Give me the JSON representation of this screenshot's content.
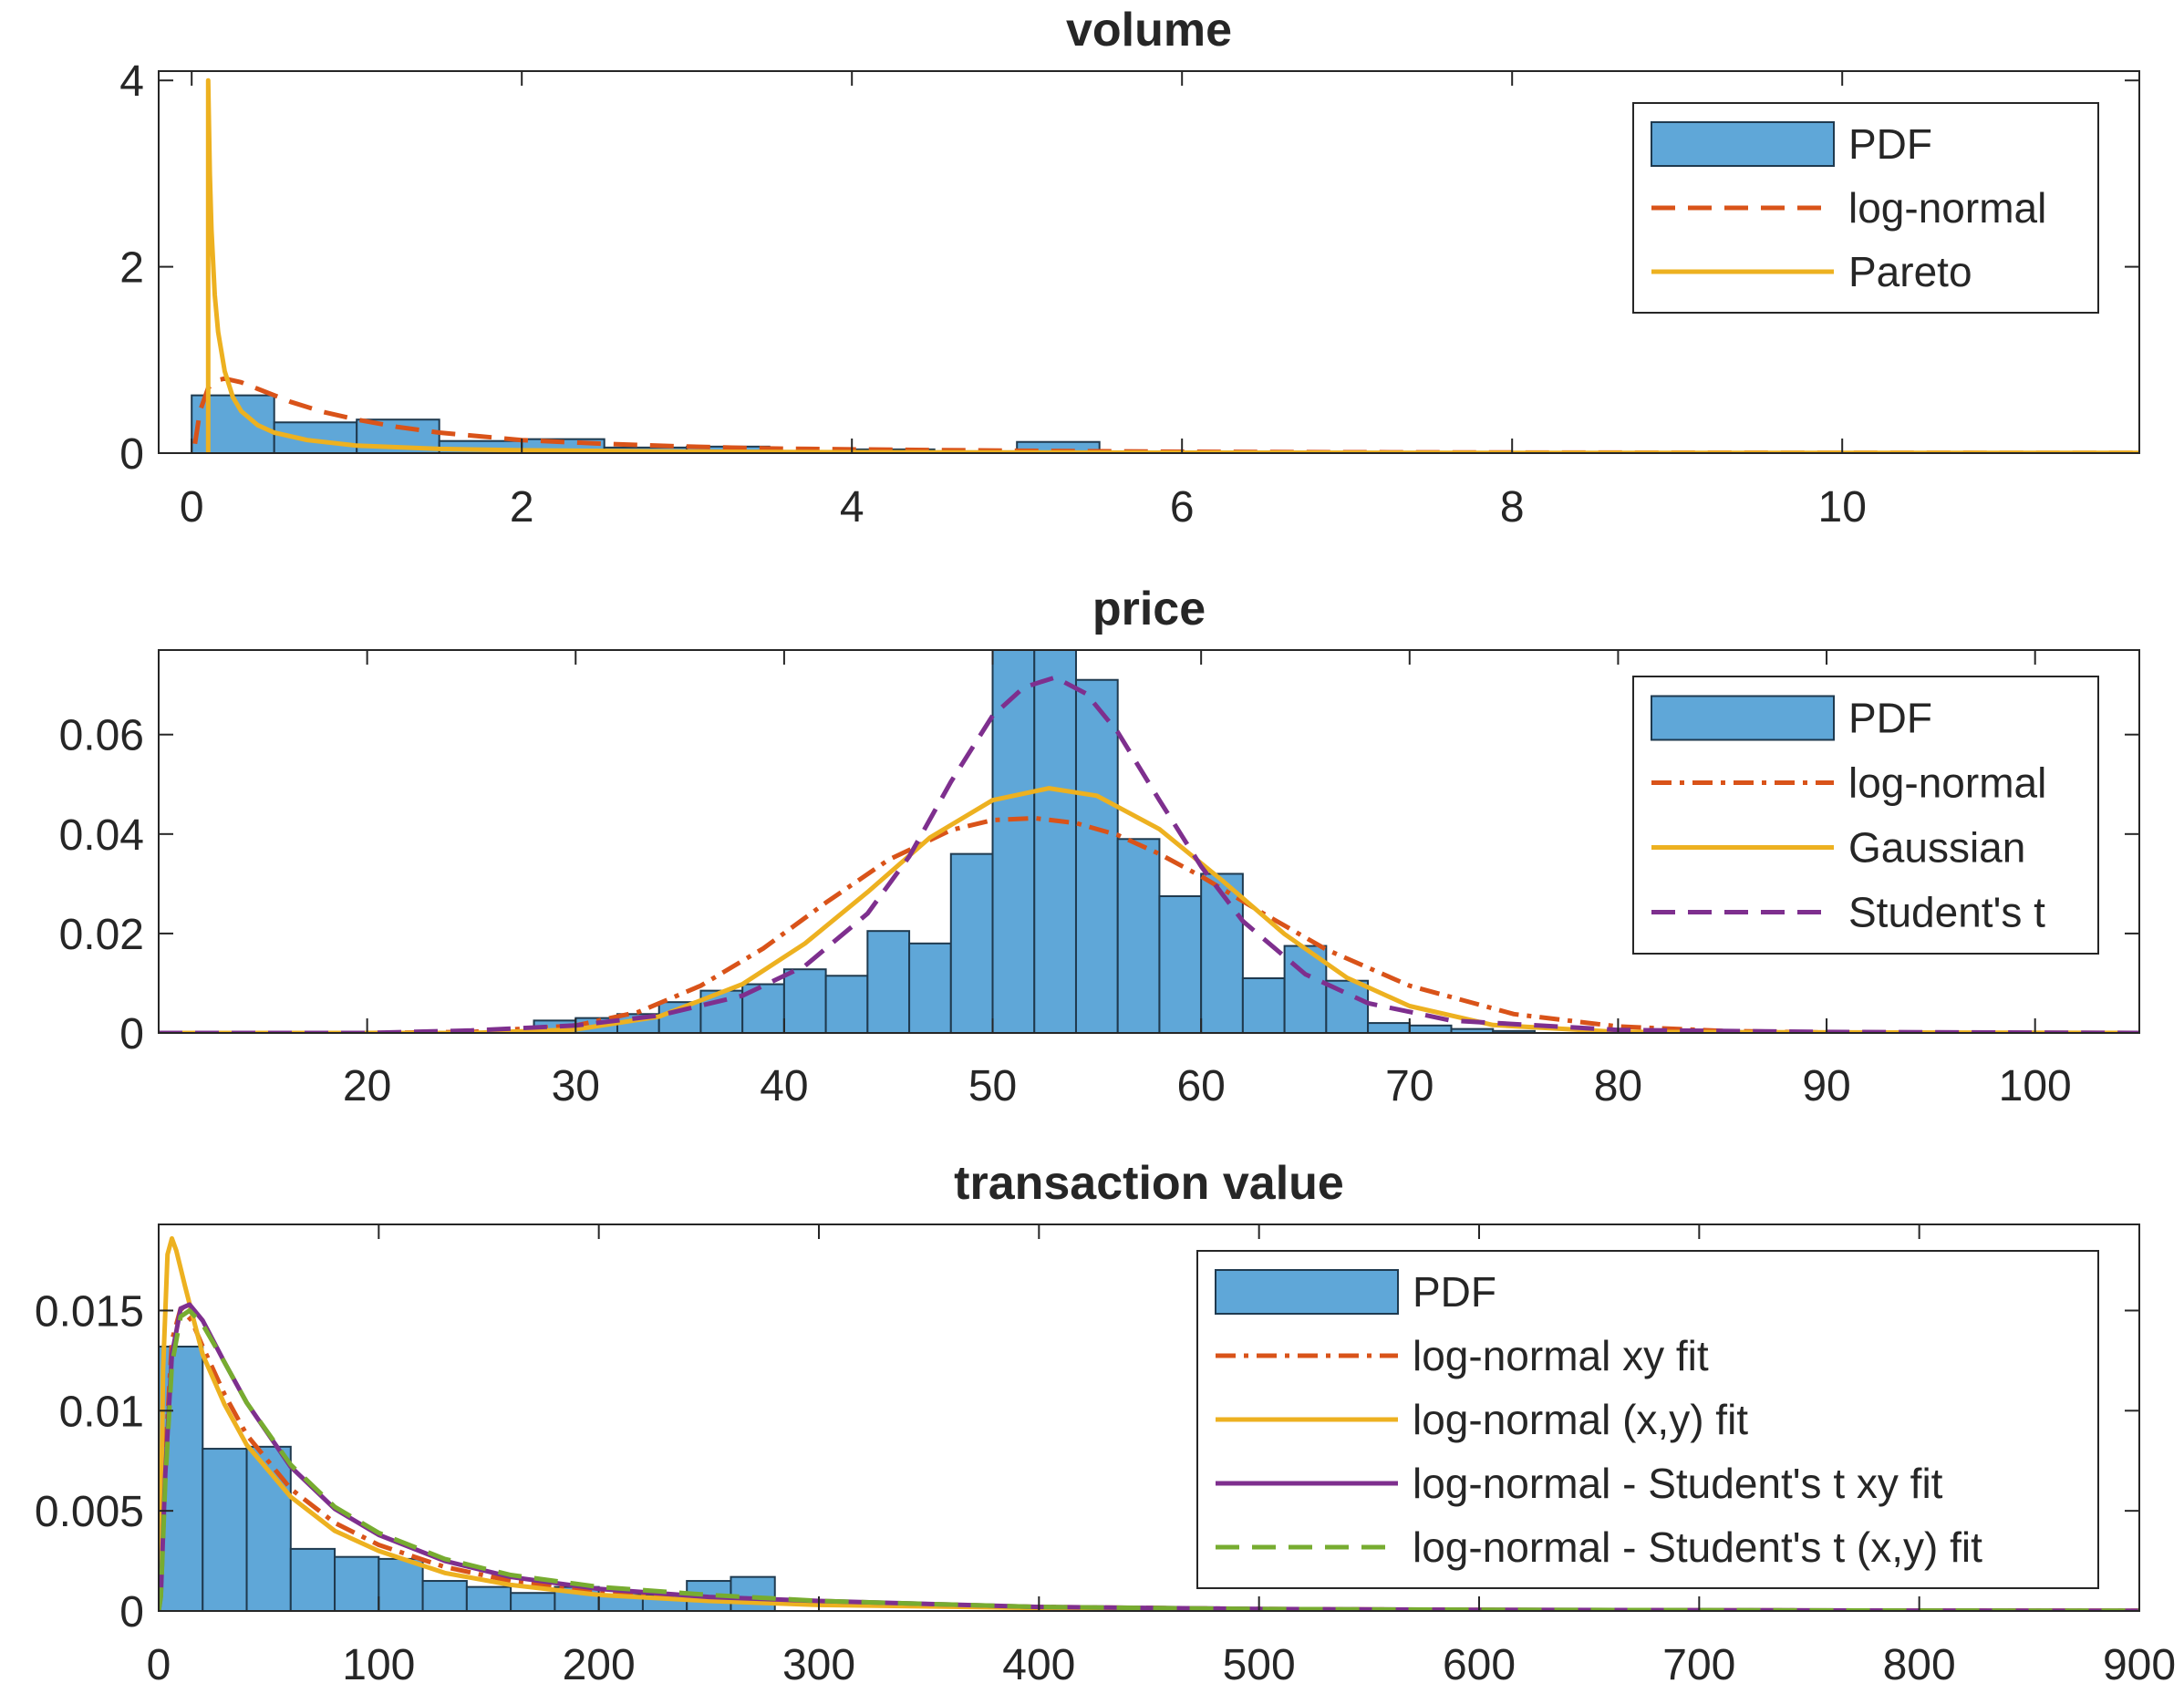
{
  "chart_data": [
    {
      "type": "bar",
      "title": "volume",
      "xlim": [
        -0.2,
        11.8
      ],
      "ylim": [
        0,
        4.1
      ],
      "xticks": [
        0,
        2,
        4,
        6,
        8,
        10
      ],
      "yticks": [
        0,
        2,
        4
      ],
      "xticklabels": [
        "0",
        "2",
        "4",
        "6",
        "8",
        "10"
      ],
      "yticklabels": [
        "0",
        "2",
        "4"
      ],
      "grid": false,
      "legend_position": "top-right",
      "histogram": {
        "name": "PDF",
        "bin_edges": [
          0,
          0.5,
          1,
          1.5,
          2,
          2.5,
          3,
          3.5,
          4,
          4.5,
          5,
          5.5
        ],
        "values": [
          0.62,
          0.33,
          0.36,
          0.13,
          0.15,
          0.06,
          0.07,
          0.02,
          0.04,
          0.01,
          0.12
        ]
      },
      "series": [
        {
          "name": "log-normal",
          "style": "dashed",
          "color": "#D95319",
          "x": [
            0.02,
            0.05,
            0.1,
            0.15,
            0.2,
            0.3,
            0.4,
            0.5,
            0.6,
            0.8,
            1.0,
            1.25,
            1.5,
            1.75,
            2.0,
            2.5,
            3.0,
            3.5,
            4.0,
            5.0,
            6.0,
            7.0,
            8.0,
            9.0,
            10.0,
            11.0,
            11.8
          ],
          "y": [
            0.1,
            0.45,
            0.7,
            0.78,
            0.8,
            0.76,
            0.69,
            0.62,
            0.55,
            0.44,
            0.36,
            0.28,
            0.22,
            0.18,
            0.14,
            0.1,
            0.07,
            0.05,
            0.04,
            0.025,
            0.015,
            0.01,
            0.007,
            0.005,
            0.004,
            0.003,
            0.002
          ]
        },
        {
          "name": "Pareto",
          "style": "solid",
          "color": "#EDB120",
          "x": [
            0.1,
            0.1,
            0.11,
            0.12,
            0.14,
            0.16,
            0.2,
            0.25,
            0.3,
            0.4,
            0.5,
            0.7,
            1.0,
            1.5,
            2.0,
            3.0,
            4.0,
            6.0,
            8.0,
            10.0,
            11.8
          ],
          "y": [
            0,
            4.0,
            3.0,
            2.4,
            1.7,
            1.3,
            0.88,
            0.6,
            0.45,
            0.3,
            0.22,
            0.14,
            0.08,
            0.045,
            0.03,
            0.016,
            0.01,
            0.005,
            0.003,
            0.002,
            0.0015
          ]
        }
      ],
      "legend": [
        "PDF",
        "log-normal",
        "Pareto"
      ]
    },
    {
      "type": "bar",
      "title": "price",
      "xlim": [
        10,
        105
      ],
      "ylim": [
        0,
        0.077
      ],
      "xticks": [
        20,
        30,
        40,
        50,
        60,
        70,
        80,
        90,
        100
      ],
      "yticks": [
        0,
        0.02,
        0.04,
        0.06
      ],
      "xticklabels": [
        "20",
        "30",
        "40",
        "50",
        "60",
        "70",
        "80",
        "90",
        "100"
      ],
      "yticklabels": [
        "0",
        "0.02",
        "0.04",
        "0.06"
      ],
      "grid": false,
      "legend_position": "top-right",
      "histogram": {
        "name": "PDF",
        "bin_edges": [
          28,
          30,
          32,
          34,
          36,
          38,
          40,
          42,
          44,
          46,
          48,
          50,
          52,
          54,
          56,
          58,
          60,
          62,
          64,
          66,
          68,
          70,
          72,
          74,
          76
        ],
        "values": [
          0.0025,
          0.003,
          0.0038,
          0.0062,
          0.0085,
          0.0098,
          0.0128,
          0.0115,
          0.0205,
          0.018,
          0.036,
          0.0775,
          0.0775,
          0.071,
          0.039,
          0.0275,
          0.032,
          0.011,
          0.0175,
          0.0105,
          0.002,
          0.0015,
          0.0008,
          0.0004
        ]
      },
      "series": [
        {
          "name": "log-normal",
          "style": "dashdot",
          "color": "#D95319",
          "x": [
            10,
            20,
            25,
            30,
            33,
            36,
            39,
            42,
            45,
            48,
            50,
            52,
            54,
            56,
            58,
            60,
            63,
            66,
            70,
            75,
            80,
            85,
            90,
            95,
            105
          ],
          "y": [
            0,
            0,
            0.0002,
            0.0015,
            0.0042,
            0.0095,
            0.017,
            0.0262,
            0.0348,
            0.0408,
            0.0428,
            0.0432,
            0.0422,
            0.0398,
            0.036,
            0.0315,
            0.024,
            0.0168,
            0.0095,
            0.0038,
            0.0013,
            0.0004,
            0.0001,
            0,
            0
          ]
        },
        {
          "name": "Gaussian",
          "style": "solid",
          "color": "#EDB120",
          "x": [
            10,
            25,
            30,
            34,
            38,
            41,
            44,
            47,
            50,
            52.7,
            55,
            58,
            61,
            64,
            67,
            70,
            74,
            80,
            105
          ],
          "y": [
            0,
            0,
            0.0007,
            0.0033,
            0.0098,
            0.018,
            0.0283,
            0.0393,
            0.0468,
            0.0492,
            0.0477,
            0.041,
            0.0307,
            0.0199,
            0.0111,
            0.0054,
            0.0016,
            0.0002,
            0
          ]
        },
        {
          "name": "Student's t",
          "style": "dashed",
          "color": "#7E2F8E",
          "x": [
            10,
            20,
            25,
            30,
            34,
            38,
            41,
            44,
            46,
            48,
            50,
            51.5,
            53,
            54.5,
            56,
            58,
            60,
            62,
            65,
            68,
            72,
            80,
            90,
            105
          ],
          "y": [
            0,
            0,
            0.0005,
            0.0015,
            0.0035,
            0.0075,
            0.0135,
            0.024,
            0.0355,
            0.0505,
            0.0638,
            0.0695,
            0.0715,
            0.0682,
            0.0605,
            0.0468,
            0.0335,
            0.0225,
            0.0118,
            0.006,
            0.0025,
            0.0006,
            0.0002,
            0
          ]
        }
      ],
      "legend": [
        "PDF",
        "log-normal",
        "Gaussian",
        "Student's t"
      ]
    },
    {
      "type": "bar",
      "title": "transaction value",
      "xlim": [
        0,
        900
      ],
      "ylim": [
        0,
        0.0193
      ],
      "xticks": [
        0,
        100,
        200,
        300,
        400,
        500,
        600,
        700,
        800,
        900
      ],
      "yticks": [
        0,
        0.005,
        0.01,
        0.015
      ],
      "xticklabels": [
        "0",
        "100",
        "200",
        "300",
        "400",
        "500",
        "600",
        "700",
        "800",
        "900"
      ],
      "yticklabels": [
        "0",
        "0.005",
        "0.01",
        "0.015"
      ],
      "grid": false,
      "legend_position": "top-right",
      "histogram": {
        "name": "PDF",
        "bin_edges": [
          0,
          20,
          40,
          60,
          80,
          100,
          120,
          140,
          160,
          180,
          200,
          220,
          240,
          260,
          280
        ],
        "values": [
          0.0132,
          0.0081,
          0.0082,
          0.0031,
          0.0027,
          0.0026,
          0.0015,
          0.0012,
          0.0009,
          0.0012,
          0.0008,
          0.0008,
          0.0015,
          0.0017
        ]
      },
      "series": [
        {
          "name": "log-normal xy fit",
          "style": "dashdot",
          "color": "#D95319",
          "x": [
            0,
            1,
            3,
            6,
            10,
            15,
            20,
            30,
            40,
            60,
            80,
            100,
            130,
            160,
            200,
            250,
            300,
            400,
            500,
            600,
            700,
            800,
            900
          ],
          "y": [
            0,
            0.001,
            0.0075,
            0.0135,
            0.0151,
            0.0145,
            0.0132,
            0.0108,
            0.0088,
            0.0061,
            0.0044,
            0.0033,
            0.0022,
            0.0015,
            0.001,
            0.0006,
            0.0004,
            0.0002,
            0.0001,
            5e-05,
            3e-05,
            2e-05,
            1e-05
          ]
        },
        {
          "name": "log-normal (x,y) fit",
          "style": "solid",
          "color": "#EDB120",
          "x": [
            0,
            1,
            2,
            4,
            6,
            8,
            12,
            16,
            20,
            30,
            40,
            60,
            80,
            100,
            130,
            160,
            200,
            250,
            300,
            400,
            500,
            700,
            900
          ],
          "y": [
            0,
            0.004,
            0.012,
            0.0178,
            0.0186,
            0.018,
            0.0162,
            0.0145,
            0.0128,
            0.0103,
            0.0083,
            0.0057,
            0.004,
            0.003,
            0.0019,
            0.0013,
            0.0008,
            0.0005,
            0.0003,
            0.00015,
            8e-05,
            3e-05,
            1e-05
          ]
        },
        {
          "name": "log-normal - Student's t xy fit",
          "style": "solid",
          "color": "#7E2F8E",
          "x": [
            0,
            1,
            3,
            6,
            10,
            14,
            20,
            30,
            40,
            60,
            80,
            100,
            130,
            160,
            200,
            250,
            300,
            400,
            500,
            600,
            700,
            800,
            900
          ],
          "y": [
            0,
            0.0008,
            0.0068,
            0.0128,
            0.0151,
            0.0153,
            0.0145,
            0.0124,
            0.0104,
            0.0072,
            0.0051,
            0.0038,
            0.0025,
            0.0017,
            0.0011,
            0.0007,
            0.0005,
            0.0002,
            0.0001,
            6e-05,
            4e-05,
            2e-05,
            1e-05
          ]
        },
        {
          "name": "log-normal - Student's t (x,y) fit",
          "style": "dashed",
          "color": "#77AC30",
          "x": [
            0,
            1,
            3,
            6,
            10,
            14,
            20,
            30,
            40,
            60,
            80,
            100,
            130,
            160,
            200,
            250,
            300,
            400,
            500,
            600,
            700,
            800,
            900
          ],
          "y": [
            0,
            0.0007,
            0.0064,
            0.0123,
            0.0147,
            0.015,
            0.0143,
            0.0124,
            0.0104,
            0.0073,
            0.0052,
            0.0039,
            0.0026,
            0.0018,
            0.0012,
            0.0008,
            0.0005,
            0.0002,
            0.0001,
            6e-05,
            4e-05,
            2e-05,
            1e-05
          ]
        }
      ],
      "legend": [
        "PDF",
        "log-normal xy fit",
        "log-normal (x,y) fit",
        "log-normal - Student's t xy fit",
        "log-normal - Student's t (x,y) fit"
      ]
    }
  ],
  "colors": {
    "bar_fill": "#5FA7D8",
    "bar_edge": "#1F3A4F",
    "axes": "#262626"
  }
}
